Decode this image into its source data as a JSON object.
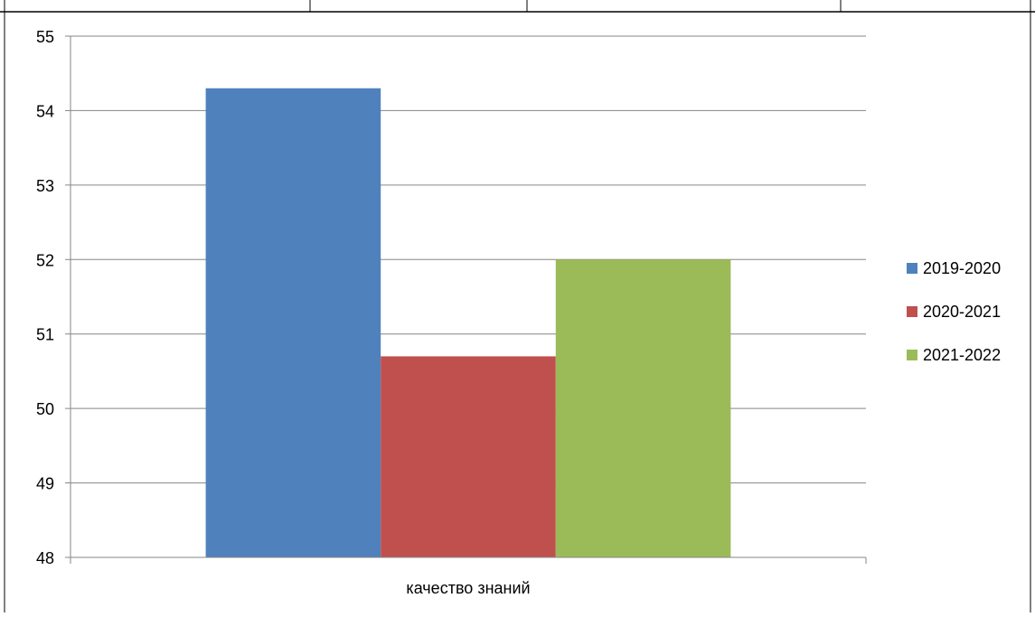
{
  "chart_data": {
    "type": "bar",
    "categories": [
      "качество знаний"
    ],
    "series": [
      {
        "name": "2019-2020",
        "values": [
          54.3
        ],
        "color": "#4F81BD"
      },
      {
        "name": "2020-2021",
        "values": [
          50.7
        ],
        "color": "#C0504D"
      },
      {
        "name": "2021-2022",
        "values": [
          52.0
        ],
        "color": "#9BBB59"
      }
    ],
    "ylim": [
      48,
      55
    ],
    "yticks": [
      "48",
      "49",
      "50",
      "51",
      "52",
      "53",
      "54",
      "55"
    ],
    "grid": true,
    "legend_position": "right",
    "title": "",
    "xlabel": "",
    "ylabel": ""
  }
}
